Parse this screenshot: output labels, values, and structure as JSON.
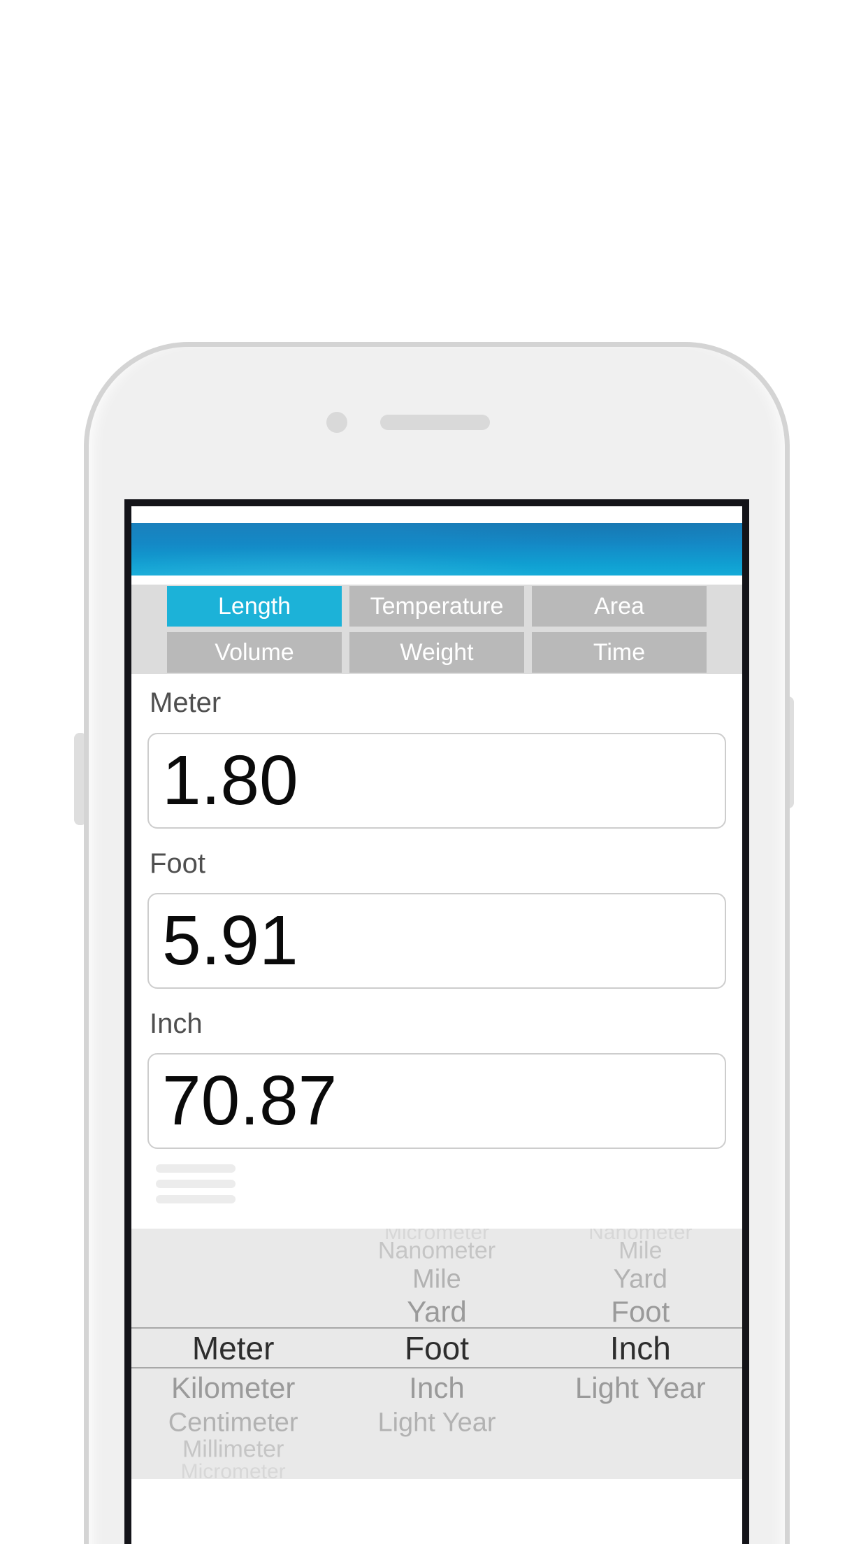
{
  "tabs": {
    "items": [
      {
        "label": "Length",
        "selected": true
      },
      {
        "label": "Temperature",
        "selected": false
      },
      {
        "label": "Area",
        "selected": false
      },
      {
        "label": "Volume",
        "selected": false
      },
      {
        "label": "Weight",
        "selected": false
      },
      {
        "label": "Time",
        "selected": false
      }
    ]
  },
  "fields": [
    {
      "label": "Meter",
      "value": "1.80"
    },
    {
      "label": "Foot",
      "value": "5.91"
    },
    {
      "label": "Inch",
      "value": "70.87"
    }
  ],
  "picker": {
    "selected_units": [
      "Meter",
      "Foot",
      "Inch"
    ],
    "rows": [
      {
        "cells": [
          "",
          "Micrometer",
          "Nanometer"
        ]
      },
      {
        "cells": [
          "",
          "Nanometer",
          "Mile"
        ]
      },
      {
        "cells": [
          "",
          "Mile",
          "Yard"
        ]
      },
      {
        "cells": [
          "",
          "Yard",
          "Foot"
        ]
      },
      {
        "cells": [
          "Meter",
          "Foot",
          "Inch"
        ],
        "selected": true
      },
      {
        "cells": [
          "Kilometer",
          "Inch",
          "Light Year"
        ]
      },
      {
        "cells": [
          "Centimeter",
          "Light Year",
          ""
        ]
      },
      {
        "cells": [
          "Millimeter",
          "",
          ""
        ]
      },
      {
        "cells": [
          "Micrometer",
          "",
          ""
        ]
      }
    ]
  },
  "icons": {
    "camera": "circle-dot",
    "speaker": "rounded-bar",
    "drag_handle": "three-horizontal-lines"
  },
  "colors": {
    "accent_selected_tab": "#1cb2d8",
    "header_gradient_top": "#1a80bc",
    "header_gradient_bottom": "#14abd8",
    "tab_button_gray": "#b9b9b9",
    "tab_band_background": "#dcdcdc",
    "screen_border_black": "#141419",
    "picker_background": "#e9e9e9",
    "field_border": "#cdcdcd",
    "value_text": "#0a0a0a",
    "label_text": "#4f4f4f",
    "phone_body": "#f0f0f0"
  }
}
